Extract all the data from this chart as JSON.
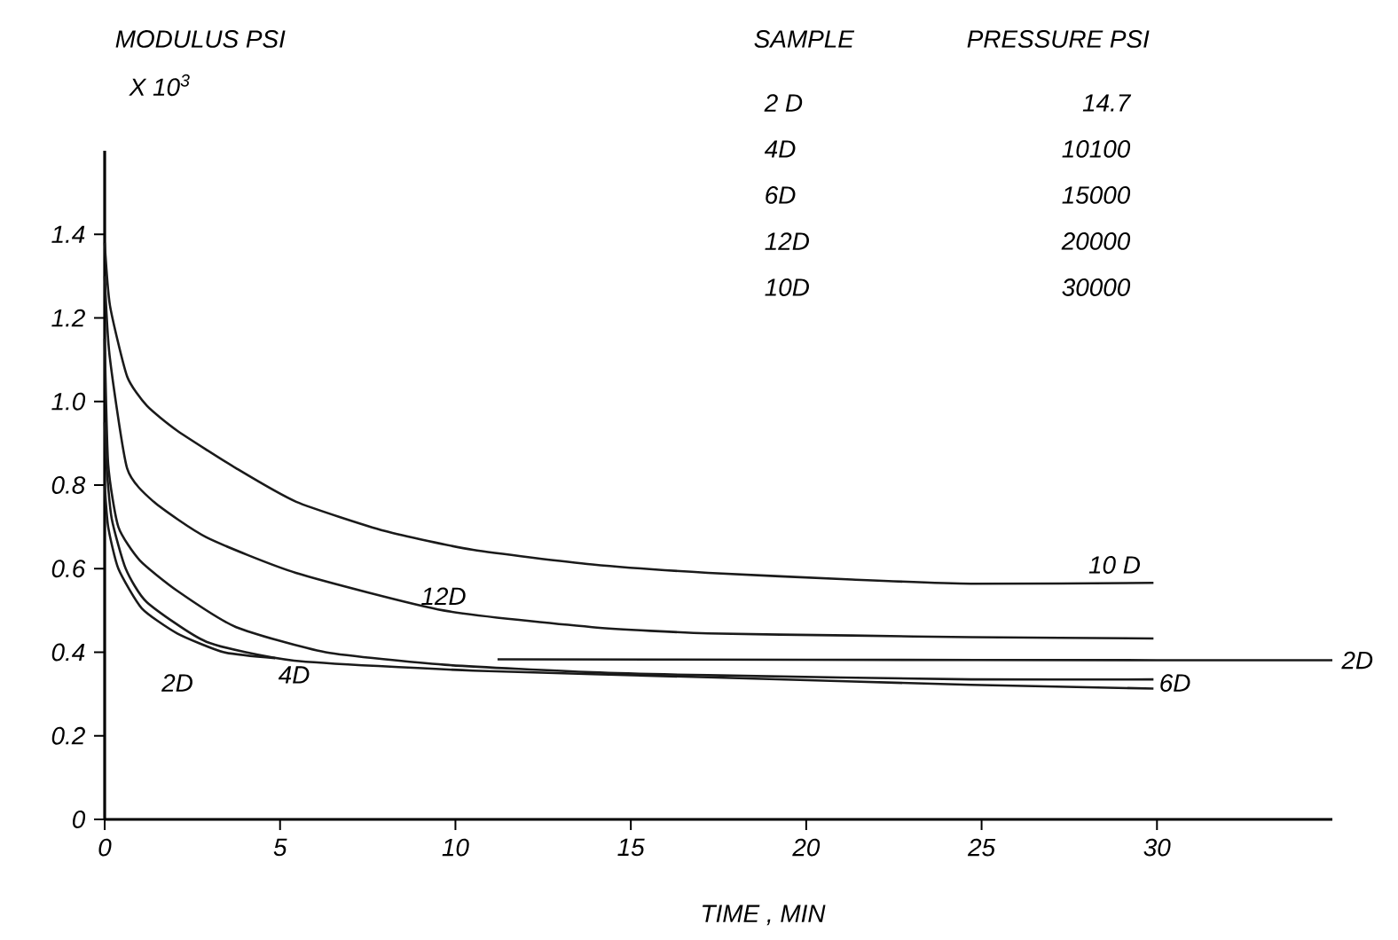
{
  "chart_data": {
    "type": "line",
    "xlabel": "TIME ,  MIN",
    "ylabel": "MODULUS   PSI",
    "xlim": [
      0,
      35
    ],
    "ylim": [
      0,
      1.6
    ],
    "xticks": [
      0,
      5,
      10,
      15,
      20,
      25,
      30
    ],
    "yticks": [
      0,
      {
        "value": 0.2,
        "label": "0.2"
      },
      {
        "value": 0.4,
        "label": "0.4"
      },
      {
        "value": 0.6,
        "label": "0.6"
      },
      {
        "value": 0.8,
        "label": "0.8"
      },
      {
        "value": 1.0,
        "label": "1.0"
      },
      {
        "value": 1.2,
        "label": "1.2"
      },
      {
        "value": 1.4,
        "label": "1.4"
      }
    ],
    "grid": false,
    "legend": false,
    "marker": "none",
    "line_style": "solid",
    "series": [
      {
        "name": "2D",
        "color": "#1a1a1a",
        "x": [
          0,
          0.1,
          0.39,
          1.06,
          2.07,
          3.4,
          4.86,
          8,
          11.2,
          20,
          30,
          35
        ],
        "values": [
          0.8,
          0.7,
          0.6,
          0.505,
          0.445,
          0.4,
          0.386,
          null,
          0.383,
          0.382,
          0.381,
          0.381
        ]
      },
      {
        "name": "4D",
        "color": "#1a1a1a",
        "x": [
          0,
          0.05,
          0.2,
          0.6,
          1.2,
          2.9,
          5.4,
          10.5,
          17.2,
          24.7,
          29.9
        ],
        "values": [
          0.95,
          0.85,
          0.72,
          0.6,
          0.52,
          0.425,
          0.38,
          0.356,
          0.34,
          0.322,
          0.313
        ]
      },
      {
        "name": "6D",
        "color": "#1a1a1a",
        "x": [
          0,
          0.1,
          0.39,
          1.0,
          2.07,
          3.75,
          6.3,
          9.7,
          13.9,
          17.2,
          24.7,
          29.9
        ],
        "values": [
          1.15,
          0.85,
          0.7,
          0.62,
          0.547,
          0.46,
          0.4,
          0.37,
          0.352,
          0.345,
          0.335,
          0.335
        ]
      },
      {
        "name": "12D",
        "color": "#1a1a1a",
        "x": [
          0,
          0.14,
          0.64,
          1.4,
          2.9,
          5.45,
          9.66,
          13.9,
          17.2,
          21.3,
          24.7,
          29.9
        ],
        "values": [
          1.3,
          1.11,
          0.84,
          0.76,
          0.675,
          0.59,
          0.5,
          0.46,
          0.445,
          0.44,
          0.436,
          0.433
        ]
      },
      {
        "name": "10 D",
        "color": "#1a1a1a",
        "x": [
          0,
          0.15,
          0.64,
          1.2,
          2.07,
          3.75,
          5.46,
          7.99,
          10.5,
          13.9,
          17.2,
          21.3,
          24.7,
          29.9
        ],
        "values": [
          1.38,
          1.23,
          1.06,
          0.99,
          0.93,
          0.84,
          0.76,
          0.69,
          0.645,
          0.61,
          0.59,
          0.574,
          0.564,
          0.566
        ]
      }
    ],
    "annotations": [
      "X 10$^{3}$",
      "SAMPLE",
      "PRESSURE   PSI",
      "2 D",
      "14.7",
      "4D",
      "10100",
      "6D",
      "15000",
      "12D",
      "20000",
      "10D",
      "30000",
      "2D"
    ]
  }
}
